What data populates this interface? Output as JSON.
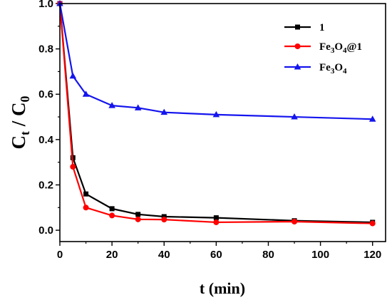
{
  "chart_data": {
    "type": "line",
    "xlabel": "t (min)",
    "ylabel": {
      "main": "C",
      "sub1": "t",
      "mid": " / C",
      "sub2": "0"
    },
    "xlim": [
      0,
      125
    ],
    "ylim": [
      -0.05,
      1.0
    ],
    "xticks": [
      0,
      20,
      40,
      60,
      80,
      100,
      120
    ],
    "yticks": [
      0.0,
      0.2,
      0.4,
      0.6,
      0.8,
      1.0
    ],
    "legend_position": "top-right",
    "series": [
      {
        "name": "1",
        "color": "#000000",
        "marker": "square",
        "x": [
          0,
          5,
          10,
          20,
          30,
          40,
          60,
          90,
          120
        ],
        "y": [
          1.0,
          0.32,
          0.16,
          0.095,
          0.07,
          0.06,
          0.055,
          0.042,
          0.035
        ]
      },
      {
        "name": "Fe3O4@1",
        "color": "#ff0000",
        "marker": "circle",
        "x": [
          0,
          5,
          10,
          20,
          30,
          40,
          60,
          90,
          120
        ],
        "y": [
          1.0,
          0.28,
          0.1,
          0.065,
          0.048,
          0.047,
          0.035,
          0.038,
          0.03
        ]
      },
      {
        "name": "Fe3O4",
        "color": "#1515ee",
        "marker": "triangle",
        "x": [
          0,
          5,
          10,
          20,
          30,
          40,
          60,
          90,
          120
        ],
        "y": [
          1.0,
          0.68,
          0.6,
          0.55,
          0.54,
          0.52,
          0.51,
          0.5,
          0.49
        ]
      }
    ]
  }
}
